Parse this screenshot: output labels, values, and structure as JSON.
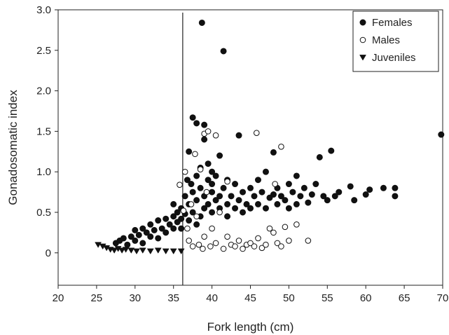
{
  "chart_data": {
    "type": "scatter",
    "xlabel": "Fork length (cm)",
    "ylabel": "Gonadosomatic index",
    "xlim": [
      20,
      70
    ],
    "ylim": [
      -0.4,
      3.0
    ],
    "xticks": [
      "20",
      "25",
      "30",
      "35",
      "40",
      "45",
      "50",
      "55",
      "60",
      "65",
      "70"
    ],
    "yticks": [
      "0",
      "0.5",
      "1.0",
      "1.5",
      "2.0",
      "2.5",
      "3.0"
    ],
    "ytick_values": [
      0,
      0.5,
      1.0,
      1.5,
      2.0,
      2.5,
      3.0
    ],
    "xtick_values": [
      20,
      25,
      30,
      35,
      40,
      45,
      50,
      55,
      60,
      65,
      70
    ],
    "vertical_line_x": 36.2,
    "grid": false,
    "legend_position": "top-right",
    "colors": {
      "ink": "#111111",
      "axis": "#222222"
    },
    "series": [
      {
        "name": "Females",
        "marker": "filled-circle",
        "points": [
          [
            27.5,
            0.12
          ],
          [
            28.0,
            0.15
          ],
          [
            28.5,
            0.18
          ],
          [
            29.0,
            0.1
          ],
          [
            29.5,
            0.2
          ],
          [
            30.0,
            0.28
          ],
          [
            30.0,
            0.15
          ],
          [
            30.5,
            0.22
          ],
          [
            31.0,
            0.3
          ],
          [
            31.0,
            0.12
          ],
          [
            31.5,
            0.25
          ],
          [
            32.0,
            0.35
          ],
          [
            32.0,
            0.2
          ],
          [
            32.5,
            0.28
          ],
          [
            33.0,
            0.4
          ],
          [
            33.0,
            0.18
          ],
          [
            33.5,
            0.3
          ],
          [
            34.0,
            0.42
          ],
          [
            34.0,
            0.25
          ],
          [
            34.5,
            0.35
          ],
          [
            35.0,
            0.45
          ],
          [
            35.0,
            0.3
          ],
          [
            35.0,
            0.6
          ],
          [
            35.5,
            0.38
          ],
          [
            35.5,
            0.5
          ],
          [
            36.0,
            0.42
          ],
          [
            36.0,
            0.55
          ],
          [
            36.0,
            0.3
          ],
          [
            36.5,
            0.48
          ],
          [
            36.5,
            0.7
          ],
          [
            36.8,
            0.9
          ],
          [
            37.0,
            0.6
          ],
          [
            37.0,
            0.4
          ],
          [
            37.0,
            1.25
          ],
          [
            37.3,
            0.85
          ],
          [
            37.5,
            0.75
          ],
          [
            37.5,
            0.5
          ],
          [
            37.5,
            1.67
          ],
          [
            38.0,
            0.95
          ],
          [
            38.0,
            0.65
          ],
          [
            38.0,
            1.6
          ],
          [
            38.0,
            0.35
          ],
          [
            38.5,
            0.8
          ],
          [
            38.5,
            1.05
          ],
          [
            38.5,
            0.45
          ],
          [
            38.7,
            2.84
          ],
          [
            39.0,
            1.4
          ],
          [
            39.0,
            0.7
          ],
          [
            39.0,
            0.55
          ],
          [
            39.0,
            1.58
          ],
          [
            39.5,
            1.1
          ],
          [
            39.5,
            0.9
          ],
          [
            39.5,
            0.6
          ],
          [
            40.0,
            0.75
          ],
          [
            40.0,
            1.0
          ],
          [
            40.0,
            0.5
          ],
          [
            40.0,
            0.85
          ],
          [
            40.5,
            0.65
          ],
          [
            40.5,
            0.95
          ],
          [
            41.0,
            0.7
          ],
          [
            41.0,
            0.55
          ],
          [
            41.0,
            1.2
          ],
          [
            41.5,
            2.49
          ],
          [
            41.5,
            0.8
          ],
          [
            42.0,
            0.6
          ],
          [
            42.0,
            0.9
          ],
          [
            42.0,
            0.45
          ],
          [
            42.5,
            0.7
          ],
          [
            43.0,
            0.55
          ],
          [
            43.0,
            0.85
          ],
          [
            43.5,
            1.45
          ],
          [
            43.5,
            0.65
          ],
          [
            44.0,
            0.75
          ],
          [
            44.0,
            0.5
          ],
          [
            44.5,
            0.6
          ],
          [
            45.0,
            0.8
          ],
          [
            45.0,
            0.55
          ],
          [
            45.5,
            0.7
          ],
          [
            46.0,
            0.9
          ],
          [
            46.0,
            0.6
          ],
          [
            46.5,
            0.75
          ],
          [
            47.0,
            1.0
          ],
          [
            47.0,
            0.55
          ],
          [
            47.5,
            0.68
          ],
          [
            48.0,
            1.24
          ],
          [
            48.0,
            0.72
          ],
          [
            48.5,
            0.8
          ],
          [
            48.5,
            0.6
          ],
          [
            49.0,
            0.7
          ],
          [
            49.5,
            0.65
          ],
          [
            50.0,
            0.85
          ],
          [
            50.0,
            0.55
          ],
          [
            50.5,
            0.75
          ],
          [
            51.0,
            0.95
          ],
          [
            51.0,
            0.6
          ],
          [
            51.5,
            0.7
          ],
          [
            52.0,
            0.8
          ],
          [
            52.5,
            0.62
          ],
          [
            53.0,
            0.72
          ],
          [
            53.5,
            0.85
          ],
          [
            54.0,
            1.18
          ],
          [
            54.5,
            0.7
          ],
          [
            55.0,
            0.65
          ],
          [
            55.5,
            1.26
          ],
          [
            56.0,
            0.7
          ],
          [
            56.5,
            0.75
          ],
          [
            58.0,
            0.82
          ],
          [
            58.5,
            0.65
          ],
          [
            60.0,
            0.72
          ],
          [
            60.5,
            0.78
          ],
          [
            62.3,
            0.8
          ],
          [
            63.8,
            0.8
          ],
          [
            63.8,
            0.7
          ],
          [
            69.8,
            1.46
          ]
        ]
      },
      {
        "name": "Males",
        "marker": "open-circle",
        "points": [
          [
            35.8,
            0.84
          ],
          [
            36.3,
            0.52
          ],
          [
            36.5,
            1.0
          ],
          [
            36.8,
            0.3
          ],
          [
            37.0,
            0.15
          ],
          [
            37.3,
            0.6
          ],
          [
            37.5,
            0.08
          ],
          [
            37.8,
            1.22
          ],
          [
            38.0,
            0.45
          ],
          [
            38.3,
            0.1
          ],
          [
            38.5,
            1.03
          ],
          [
            38.8,
            0.05
          ],
          [
            39.0,
            1.47
          ],
          [
            39.0,
            0.2
          ],
          [
            39.3,
            0.75
          ],
          [
            39.5,
            1.5
          ],
          [
            39.8,
            0.08
          ],
          [
            40.0,
            0.3
          ],
          [
            40.5,
            1.45
          ],
          [
            40.5,
            0.12
          ],
          [
            41.0,
            0.5
          ],
          [
            41.5,
            0.05
          ],
          [
            42.0,
            0.88
          ],
          [
            42.0,
            0.2
          ],
          [
            42.5,
            0.1
          ],
          [
            43.0,
            0.08
          ],
          [
            43.5,
            0.15
          ],
          [
            44.0,
            0.05
          ],
          [
            44.5,
            0.1
          ],
          [
            45.0,
            0.12
          ],
          [
            45.5,
            0.08
          ],
          [
            45.8,
            1.48
          ],
          [
            46.0,
            0.18
          ],
          [
            46.5,
            0.06
          ],
          [
            47.0,
            0.1
          ],
          [
            47.5,
            0.3
          ],
          [
            48.0,
            0.25
          ],
          [
            48.2,
            0.85
          ],
          [
            48.5,
            0.12
          ],
          [
            49.0,
            1.31
          ],
          [
            49.0,
            0.08
          ],
          [
            49.5,
            0.32
          ],
          [
            50.0,
            0.15
          ],
          [
            51.0,
            0.35
          ],
          [
            52.5,
            0.15
          ]
        ]
      },
      {
        "name": "Juveniles",
        "marker": "filled-triangle-down",
        "points": [
          [
            25.2,
            0.1
          ],
          [
            25.8,
            0.08
          ],
          [
            26.3,
            0.06
          ],
          [
            26.8,
            0.04
          ],
          [
            27.3,
            0.03
          ],
          [
            27.8,
            0.05
          ],
          [
            28.3,
            0.03
          ],
          [
            28.8,
            0.04
          ],
          [
            29.5,
            0.03
          ],
          [
            30.2,
            0.02
          ],
          [
            31.0,
            0.03
          ],
          [
            32.0,
            0.02
          ],
          [
            33.0,
            0.03
          ],
          [
            34.0,
            0.02
          ],
          [
            35.0,
            0.02
          ],
          [
            36.0,
            0.02
          ]
        ]
      }
    ]
  }
}
